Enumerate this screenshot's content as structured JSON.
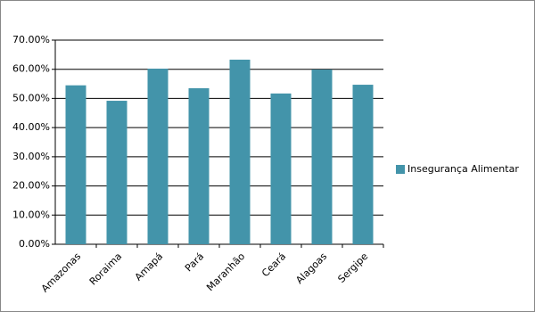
{
  "chart_data": {
    "type": "bar",
    "categories": [
      "Amazonas",
      "Roraima",
      "Amapá",
      "Pará",
      "Maranhão",
      "Ceará",
      "Alagoas",
      "Sergipe"
    ],
    "series": [
      {
        "name": "Insegurança Alimentar",
        "color": "#4394aa",
        "values": [
          54.5,
          49.2,
          60.2,
          53.5,
          63.3,
          51.7,
          59.9,
          54.7
        ]
      }
    ],
    "ylim": [
      0,
      70
    ],
    "yticks": [
      {
        "value": 0,
        "label": "0.00%"
      },
      {
        "value": 10,
        "label": "10.00%"
      },
      {
        "value": 20,
        "label": "20.00%"
      },
      {
        "value": 30,
        "label": "30.00%"
      },
      {
        "value": 40,
        "label": "40.00%"
      },
      {
        "value": 50,
        "label": "50.00%"
      },
      {
        "value": 60,
        "label": "60.00%"
      },
      {
        "value": 70,
        "label": "70.00%"
      }
    ],
    "grid": true,
    "legend": "right"
  }
}
